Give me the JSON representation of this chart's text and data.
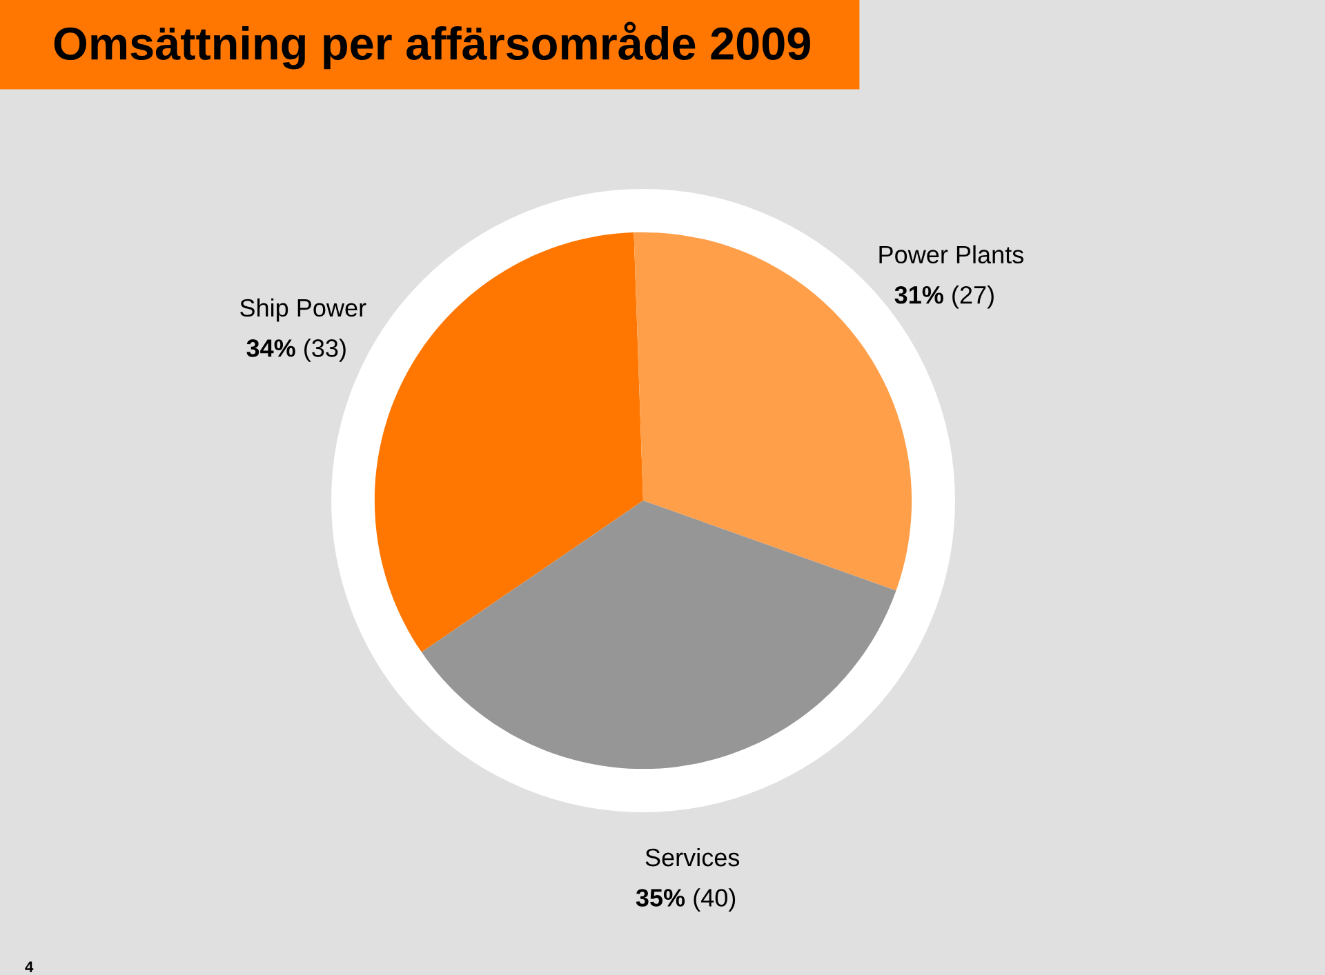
{
  "chart_data": {
    "type": "pie",
    "title": "Omsättning per affärsområde 2009",
    "categories": [
      "Ship Power",
      "Power Plants",
      "Services"
    ],
    "values": [
      34,
      31,
      35
    ],
    "value_labels": [
      "34% (33)",
      "31% (27)",
      "35% (40)"
    ],
    "colors": [
      "#ff7700",
      "#ff9f4a",
      "#969696"
    ],
    "annotations": [
      "4"
    ]
  }
}
